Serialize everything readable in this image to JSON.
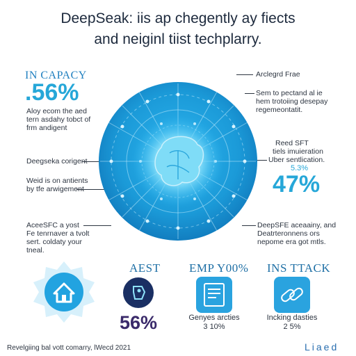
{
  "title": {
    "line1": "DeepSeak: iis ap chegently ay fiects",
    "line2": "and neiginl tiist techplarry."
  },
  "left": {
    "capacity_heading": "IN CAPACY",
    "capacity_value": ".56%",
    "capacity_desc": [
      "Aloy ecom the aed",
      "tern asdahy tobct of",
      "frm andigent"
    ],
    "mid_title": "Deegseka corigent",
    "mid_desc": [
      "Weid is on antients",
      "by tfe arwigement"
    ],
    "bottom_desc": [
      "AceeSFC a yost",
      "Fe tenrnaver a tvolt",
      "sert. coldaty your",
      "tneal."
    ]
  },
  "right": {
    "top_title": "Arclegrd Frae",
    "top_desc": [
      "Sem to pectand al ie",
      "hem trotoiing desepay",
      "regemeontatit."
    ],
    "mid_title": "Reed SFT",
    "mid_desc": [
      "tiels imuieration",
      "Uber sentlication."
    ],
    "mid_small_value": "5.3%",
    "mid_big_value": "47%",
    "bottom_desc": [
      "DeepSFE aceaainy, and",
      "Deatrteronnens ors",
      "nepome era got mtls."
    ]
  },
  "features": [
    {
      "title": "AEST",
      "pct": "56%",
      "caption": [],
      "icon": "tag-circle-icon"
    },
    {
      "title": "EMP Y00%",
      "pct": "",
      "caption": [
        "Genyes arcties",
        "3 10%"
      ],
      "icon": "document-icon"
    },
    {
      "title": "INS TTACK",
      "pct": "",
      "caption": [
        "Incking dasties",
        "2 5%"
      ],
      "icon": "link-icon"
    }
  ],
  "home_icon": "home-icon",
  "footer": {
    "left": "Revelgiing bal vott comarry, lWecd 2021",
    "right": "Liaed"
  },
  "colors": {
    "globe_blue": "#1b9ad8",
    "globe_dark": "#127ec0",
    "core_light": "#8fe3fb",
    "accent": "#26a7d8",
    "navy": "#1a2f63"
  }
}
